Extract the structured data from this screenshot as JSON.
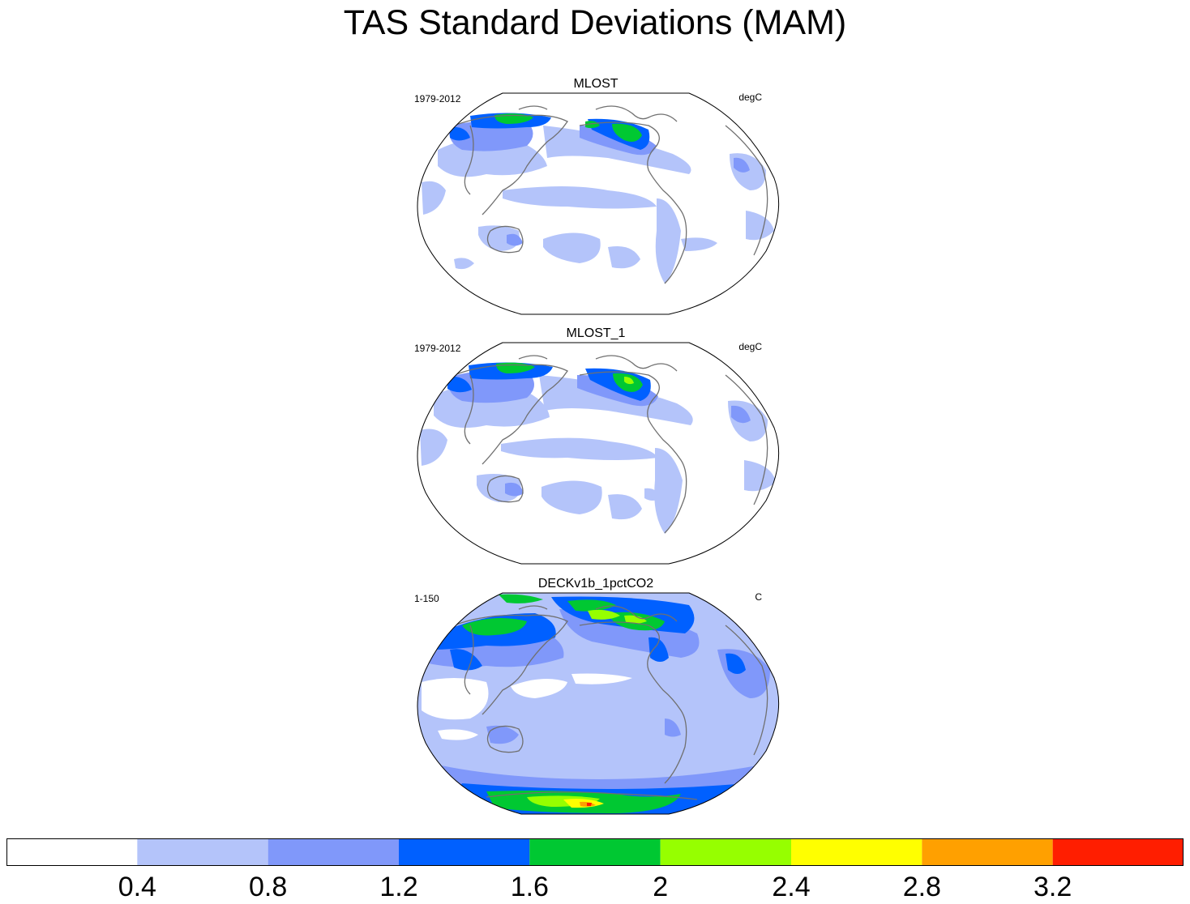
{
  "title": "TAS Standard Deviations (MAM)",
  "panels": [
    {
      "name": "MLOST",
      "period": "1979-2012",
      "units": "degC"
    },
    {
      "name": "MLOST_1",
      "period": "1979-2012",
      "units": "degC"
    },
    {
      "name": "DECKv1b_1pctCO2",
      "period": "1-150",
      "units": "C"
    }
  ],
  "colorbar": {
    "labels": [
      "0.4",
      "0.8",
      "1.2",
      "1.6",
      "2",
      "2.4",
      "2.8",
      "3.2"
    ],
    "colors": [
      "#ffffff",
      "#b4c4fa",
      "#8098fa",
      "#0060ff",
      "#00c832",
      "#96ff00",
      "#ffff00",
      "#ffa000",
      "#ff1e00"
    ]
  },
  "colors": {
    "coastline": "#707070",
    "outline": "#000000"
  }
}
